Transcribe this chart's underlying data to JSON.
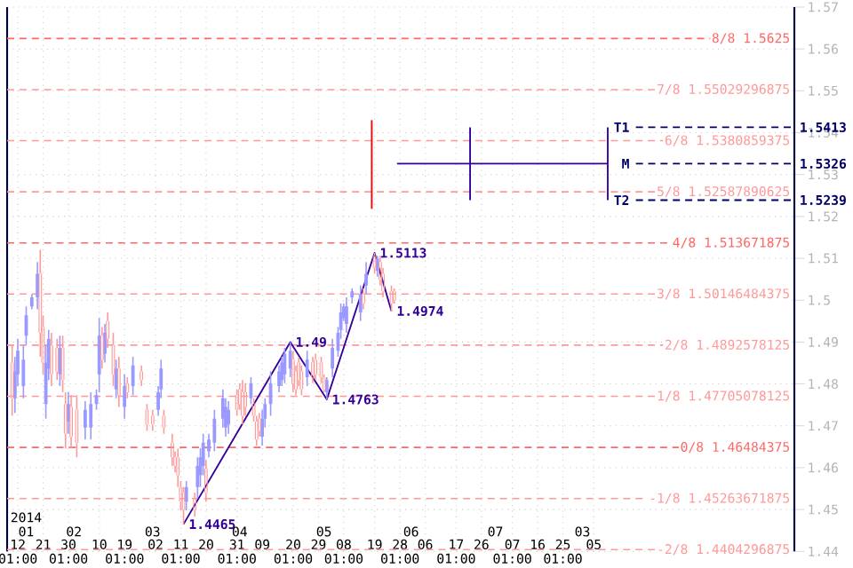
{
  "chart_data": {
    "type": "candlestick",
    "xlim": [
      "2014-01-08T05:00",
      "2014-10-15T10:00"
    ],
    "ylim": [
      1.44,
      1.57
    ],
    "yticks": [
      1.44,
      1.45,
      1.46,
      1.47,
      1.48,
      1.49,
      1.5,
      1.51,
      1.52,
      1.53,
      1.54,
      1.55,
      1.56,
      1.57
    ],
    "xticks": [
      {
        "value": "2014-01-12T01:00",
        "label": "12 01:00"
      },
      {
        "value": "2014-01-21T01:00",
        "label": "21"
      },
      {
        "value": "2014-01-30T01:00",
        "label": "30 01:00"
      },
      {
        "value": "2014-02-10T01:00",
        "label": "10"
      },
      {
        "value": "2014-02-19T01:00",
        "label": "19 01:00"
      },
      {
        "value": "2014-03-02T01:00",
        "label": "02"
      },
      {
        "value": "2014-03-11T01:00",
        "label": "11 01:00"
      },
      {
        "value": "2014-03-20T01:00",
        "label": "20"
      },
      {
        "value": "2014-03-31T01:00",
        "label": "31 01:00"
      },
      {
        "value": "2014-04-09T01:00",
        "label": "09"
      },
      {
        "value": "2014-04-20T01:00",
        "label": "20 01:00"
      },
      {
        "value": "2014-04-29T01:00",
        "label": "29"
      },
      {
        "value": "2014-05-08T01:00",
        "label": "08 01:00"
      },
      {
        "value": "2014-05-19T01:00",
        "label": "19"
      },
      {
        "value": "2014-05-28T01:00",
        "label": "28 01:00"
      },
      {
        "value": "2014-06-06T01:00",
        "label": "06"
      },
      {
        "value": "2014-06-17T01:00",
        "label": "17 01:00"
      },
      {
        "value": "2014-06-26T01:00",
        "label": "26"
      },
      {
        "value": "2014-07-07T01:00",
        "label": "07 01:00"
      },
      {
        "value": "2014-07-16T01:00",
        "label": "16"
      },
      {
        "value": "2014-07-25T01:00",
        "label": "25 01:00"
      },
      {
        "value": "2014-08-05T01:00",
        "label": "05"
      }
    ],
    "x2lim": [
      "2014-01-08T05:00",
      "2014-10-15T10:00"
    ],
    "x2ticks": [
      {
        "value": "2014-01-15",
        "label": "2014 01"
      },
      {
        "value": "2014-02-01",
        "label": "02"
      },
      {
        "value": "2014-03-01",
        "label": "03"
      },
      {
        "value": "2014-04-01",
        "label": "04"
      },
      {
        "value": "2014-05-01",
        "label": "05"
      },
      {
        "value": "2014-06-01",
        "label": "06"
      },
      {
        "value": "2014-07-01",
        "label": "07"
      },
      {
        "value": "2014-08-01",
        "label": "03"
      }
    ],
    "grid": true,
    "ref_lines": [
      {
        "axis": "y",
        "value": 1.5625,
        "label": "8/8 1.5625",
        "color": "#ff6666",
        "line_style": "dashed"
      },
      {
        "axis": "y",
        "value": 1.55029296875,
        "label": "7/8 1.55029296875",
        "color": "#ff9999",
        "line_style": "dashed"
      },
      {
        "axis": "y",
        "value": 1.5380859375,
        "label": "6/8 1.5380859375",
        "color": "#ff9999",
        "line_style": "dashed"
      },
      {
        "axis": "y",
        "value": 1.52587890625,
        "label": "5/8 1.52587890625",
        "color": "#ff9999",
        "line_style": "dashed"
      },
      {
        "axis": "y",
        "value": 1.513671875,
        "label": "4/8 1.513671875",
        "color": "#ff6666",
        "line_style": "dashed"
      },
      {
        "axis": "y",
        "value": 1.50146484375,
        "label": "3/8 1.50146484375",
        "color": "#ff9999",
        "line_style": "dashed"
      },
      {
        "axis": "y",
        "value": 1.4892578125,
        "label": "2/8 1.4892578125",
        "color": "#ff9999",
        "line_style": "dashed"
      },
      {
        "axis": "y",
        "value": 1.47705078125,
        "label": "1/8 1.47705078125",
        "color": "#ff9999",
        "line_style": "dashed"
      },
      {
        "axis": "y",
        "value": 1.46484375,
        "label": "0/8 1.46484375",
        "color": "#ff6666",
        "line_style": "dashed"
      },
      {
        "axis": "y",
        "value": 1.45263671875,
        "label": "-1/8 1.45263671875",
        "color": "#ff9999",
        "line_style": "dashed"
      },
      {
        "axis": "y",
        "value": 1.4404296875,
        "label": "-2/8 1.4404296875",
        "color": "#ff9999",
        "line_style": "dashed"
      }
    ],
    "series": [
      {
        "color": "#9999ff",
        "x": [
          "2014-01-11",
          "2014-01-12",
          "2014-01-14",
          "2014-01-15",
          "2014-01-17",
          "2014-01-19",
          "2014-01-22",
          "2014-01-23",
          "2014-01-27",
          "2014-01-30",
          "2014-02-05",
          "2014-02-07",
          "2014-02-09",
          "2014-02-10",
          "2014-02-12",
          "2014-02-16",
          "2014-02-19",
          "2014-02-22",
          "2014-03-03",
          "2014-03-04",
          "2014-03-13",
          "2014-03-17",
          "2014-03-18",
          "2014-03-19",
          "2014-03-21",
          "2014-03-23",
          "2014-03-26",
          "2014-03-27",
          "2014-03-28",
          "2014-04-05",
          "2014-04-09",
          "2014-04-10",
          "2014-04-12",
          "2014-04-15",
          "2014-04-16",
          "2014-04-17",
          "2014-04-19",
          "2014-04-25",
          "2014-05-02",
          "2014-05-04",
          "2014-05-06",
          "2014-05-07",
          "2014-05-08",
          "2014-05-09",
          "2014-05-11",
          "2014-05-14",
          "2014-05-16",
          "2014-05-20"
        ],
        "ohlc": [
          [
            1.4766,
            1.4865,
            1.4731,
            1.483
          ],
          [
            1.4823,
            1.4908,
            1.4795,
            1.4879
          ],
          [
            1.4795,
            1.4893,
            1.4766,
            1.4858
          ],
          [
            1.4915,
            1.4985,
            1.4893,
            1.4964
          ],
          [
            1.4985,
            1.5014,
            1.4978,
            1.5007
          ],
          [
            1.5007,
            1.5091,
            1.4978,
            1.5063
          ],
          [
            1.4752,
            1.4893,
            1.4717,
            1.4851
          ],
          [
            1.4837,
            1.4929,
            1.4809,
            1.4908
          ],
          [
            1.4823,
            1.4915,
            1.4795,
            1.4886
          ],
          [
            1.471,
            1.478,
            1.4681,
            1.4752
          ],
          [
            1.4696,
            1.4759,
            1.4667,
            1.4738
          ],
          [
            1.4696,
            1.478,
            1.4667,
            1.4752
          ],
          [
            1.4752,
            1.4787,
            1.4738,
            1.4773
          ],
          [
            1.4823,
            1.4957,
            1.478,
            1.4915
          ],
          [
            1.4872,
            1.4943,
            1.4851,
            1.4922
          ],
          [
            1.4787,
            1.4858,
            1.4766,
            1.4837
          ],
          [
            1.4745,
            1.4823,
            1.4717,
            1.4795
          ],
          [
            1.4795,
            1.4865,
            1.4773,
            1.4844
          ],
          [
            1.4738,
            1.4795,
            1.4724,
            1.478
          ],
          [
            1.4787,
            1.4858,
            1.4766,
            1.4837
          ],
          [
            1.4519,
            1.4568,
            1.4498,
            1.4554
          ],
          [
            1.4554,
            1.4625,
            1.4526,
            1.4604
          ],
          [
            1.4582,
            1.4646,
            1.4554,
            1.4625
          ],
          [
            1.4604,
            1.4681,
            1.4582,
            1.466
          ],
          [
            1.4639,
            1.4681,
            1.4625,
            1.4667
          ],
          [
            1.466,
            1.4738,
            1.4639,
            1.4717
          ],
          [
            1.4717,
            1.4787,
            1.4696,
            1.4766
          ],
          [
            1.4696,
            1.4766,
            1.4674,
            1.4745
          ],
          [
            1.4703,
            1.4759,
            1.4681,
            1.4738
          ],
          [
            1.4766,
            1.4816,
            1.4752,
            1.4802
          ],
          [
            1.4674,
            1.4738,
            1.4653,
            1.4717
          ],
          [
            1.4717,
            1.4766,
            1.4696,
            1.4752
          ],
          [
            1.4752,
            1.483,
            1.4724,
            1.4802
          ],
          [
            1.4795,
            1.4844,
            1.478,
            1.483
          ],
          [
            1.4809,
            1.4865,
            1.4795,
            1.4851
          ],
          [
            1.4823,
            1.4886,
            1.4802,
            1.4872
          ],
          [
            1.4837,
            1.49,
            1.4816,
            1.4879
          ],
          [
            1.4816,
            1.4879,
            1.4795,
            1.4858
          ],
          [
            1.478,
            1.4816,
            1.4763,
            1.4809
          ],
          [
            1.4837,
            1.4908,
            1.4816,
            1.4886
          ],
          [
            1.4879,
            1.4936,
            1.4865,
            1.4922
          ],
          [
            1.4929,
            1.4992,
            1.4908,
            1.4971
          ],
          [
            1.4957,
            1.4992,
            1.495,
            1.4985
          ],
          [
            1.4943,
            1.5007,
            1.4922,
            1.4985
          ],
          [
            1.5007,
            1.5028,
            1.4992,
            1.5021
          ],
          [
            1.4971,
            1.5035,
            1.495,
            1.5014
          ],
          [
            1.5035,
            1.5091,
            1.5014,
            1.5063
          ],
          [
            1.507,
            1.5106,
            1.5056,
            1.5099
          ]
        ]
      },
      {
        "color": "#ff9999",
        "x": [
          "2014-01-10",
          "2014-01-20",
          "2014-01-21",
          "2014-01-24",
          "2014-01-26",
          "2014-01-28",
          "2014-01-29",
          "2014-01-31",
          "2014-02-02",
          "2014-02-11",
          "2014-02-13",
          "2014-02-15",
          "2014-02-17",
          "2014-02-20",
          "2014-02-25",
          "2014-02-27",
          "2014-03-01",
          "2014-03-05",
          "2014-03-08",
          "2014-03-09",
          "2014-03-10",
          "2014-03-11",
          "2014-03-12",
          "2014-03-16",
          "2014-03-20",
          "2014-03-31",
          "2014-04-01",
          "2014-04-02",
          "2014-04-03",
          "2014-04-06",
          "2014-04-07",
          "2014-04-08",
          "2014-04-20",
          "2014-04-21",
          "2014-04-22",
          "2014-04-23",
          "2014-04-27",
          "2014-04-28",
          "2014-04-30",
          "2014-05-01",
          "2014-05-15",
          "2014-05-19",
          "2014-05-21",
          "2014-05-22",
          "2014-05-25",
          "2014-05-26"
        ],
        "ohlc": [
          [
            1.4851,
            1.4893,
            1.4724,
            1.4766
          ],
          [
            1.5063,
            1.512,
            1.4865,
            1.4922
          ],
          [
            1.4936,
            1.4964,
            1.4823,
            1.4851
          ],
          [
            1.4893,
            1.4922,
            1.4795,
            1.4823
          ],
          [
            1.4886,
            1.4908,
            1.4809,
            1.483
          ],
          [
            1.4886,
            1.4915,
            1.478,
            1.4809
          ],
          [
            1.4752,
            1.478,
            1.4646,
            1.4681
          ],
          [
            1.4745,
            1.4773,
            1.4646,
            1.4674
          ],
          [
            1.4738,
            1.4773,
            1.4625,
            1.466
          ],
          [
            1.4915,
            1.4936,
            1.4837,
            1.4858
          ],
          [
            1.495,
            1.4971,
            1.4886,
            1.4908
          ],
          [
            1.4893,
            1.4922,
            1.4795,
            1.4823
          ],
          [
            1.4837,
            1.4865,
            1.4745,
            1.4773
          ],
          [
            1.4802,
            1.4816,
            1.4766,
            1.478
          ],
          [
            1.483,
            1.4844,
            1.4795,
            1.4809
          ],
          [
            1.4738,
            1.4752,
            1.4688,
            1.4703
          ],
          [
            1.4724,
            1.4738,
            1.4688,
            1.4703
          ],
          [
            1.4724,
            1.4738,
            1.4681,
            1.4696
          ],
          [
            1.466,
            1.4681,
            1.4604,
            1.4625
          ],
          [
            1.4625,
            1.4639,
            1.4589,
            1.4604
          ],
          [
            1.4625,
            1.4646,
            1.4554,
            1.4582
          ],
          [
            1.4554,
            1.4568,
            1.4498,
            1.4519
          ],
          [
            1.454,
            1.4554,
            1.4465,
            1.4498
          ],
          [
            1.4526,
            1.454,
            1.4483,
            1.4498
          ],
          [
            1.4597,
            1.4618,
            1.4519,
            1.454
          ],
          [
            1.4773,
            1.4787,
            1.4724,
            1.4738
          ],
          [
            1.4787,
            1.4802,
            1.4738,
            1.4752
          ],
          [
            1.478,
            1.4809,
            1.4703,
            1.4724
          ],
          [
            1.478,
            1.4802,
            1.4724,
            1.4745
          ],
          [
            1.4752,
            1.4766,
            1.471,
            1.4724
          ],
          [
            1.471,
            1.4724,
            1.4653,
            1.4667
          ],
          [
            1.4717,
            1.4731,
            1.4674,
            1.4688
          ],
          [
            1.4858,
            1.4879,
            1.478,
            1.4802
          ],
          [
            1.483,
            1.4844,
            1.4773,
            1.4787
          ],
          [
            1.4851,
            1.4865,
            1.4795,
            1.4809
          ],
          [
            1.483,
            1.4844,
            1.4773,
            1.4787
          ],
          [
            1.4851,
            1.4865,
            1.4802,
            1.4816
          ],
          [
            1.4858,
            1.4872,
            1.4809,
            1.4823
          ],
          [
            1.4851,
            1.4865,
            1.4802,
            1.4816
          ],
          [
            1.4816,
            1.4823,
            1.478,
            1.4787
          ],
          [
            1.5014,
            1.5028,
            1.4978,
            1.4992
          ],
          [
            1.5106,
            1.5113,
            1.5063,
            1.5077
          ],
          [
            1.5091,
            1.5106,
            1.5035,
            1.5049
          ],
          [
            1.5063,
            1.5077,
            1.5007,
            1.5021
          ],
          [
            1.5021,
            1.5035,
            1.4974,
            1.4992
          ],
          [
            1.5021,
            1.5028,
            1.4992,
            1.4999
          ]
        ]
      },
      {
        "type": "line",
        "color": "#330099",
        "line_style": "solid",
        "x": [
          "2014-03-12",
          "2014-04-19",
          "2014-05-02",
          "2014-05-19",
          "2014-05-25"
        ],
        "values": [
          1.4465,
          1.49,
          1.4763,
          1.5113,
          1.4974
        ],
        "value_labels": [
          "1.4465",
          "1.49",
          "1.4763",
          "1.5113",
          "1.4974"
        ]
      },
      {
        "type": "line",
        "color": "#ff0000",
        "line_style": "solid",
        "x": [
          "2014-05-18",
          "2014-05-18"
        ],
        "values": [
          1.543,
          1.5218
        ]
      },
      {
        "type": "line",
        "color": "#330099",
        "line_style": "solid",
        "x": [
          "2014-06-22",
          "2014-06-22"
        ],
        "values": [
          1.5413,
          1.5239
        ]
      },
      {
        "type": "line",
        "color": "#330099",
        "line_style": "solid",
        "x": [
          "2014-05-27",
          "2014-08-10"
        ],
        "values": [
          1.5326,
          1.5326
        ]
      },
      {
        "type": "line",
        "color": "#330099",
        "line_style": "solid",
        "x": [
          "2014-08-10",
          "2014-08-10"
        ],
        "values": [
          1.5413,
          1.5239
        ]
      },
      {
        "type": "line",
        "name": "T1",
        "color": "#000066",
        "line_style": "dashed",
        "x": [
          "2014-08-20",
          "2014-10-15T10:00"
        ],
        "values": [
          1.5413,
          1.5413
        ],
        "value_labels": [
          null,
          "1.5413"
        ]
      },
      {
        "type": "line",
        "name": "M",
        "color": "#000066",
        "line_style": "dashed",
        "x": [
          "2014-08-20",
          "2014-10-15T10:00"
        ],
        "values": [
          1.5326,
          1.5326
        ],
        "value_labels": [
          null,
          "1.5326"
        ]
      },
      {
        "type": "line",
        "name": "T2",
        "color": "#000066",
        "line_style": "dashed",
        "x": [
          "2014-08-20",
          "2014-10-15T10:00"
        ],
        "values": [
          1.5239,
          1.5239
        ],
        "value_labels": [
          null,
          "1.5239"
        ]
      }
    ]
  }
}
